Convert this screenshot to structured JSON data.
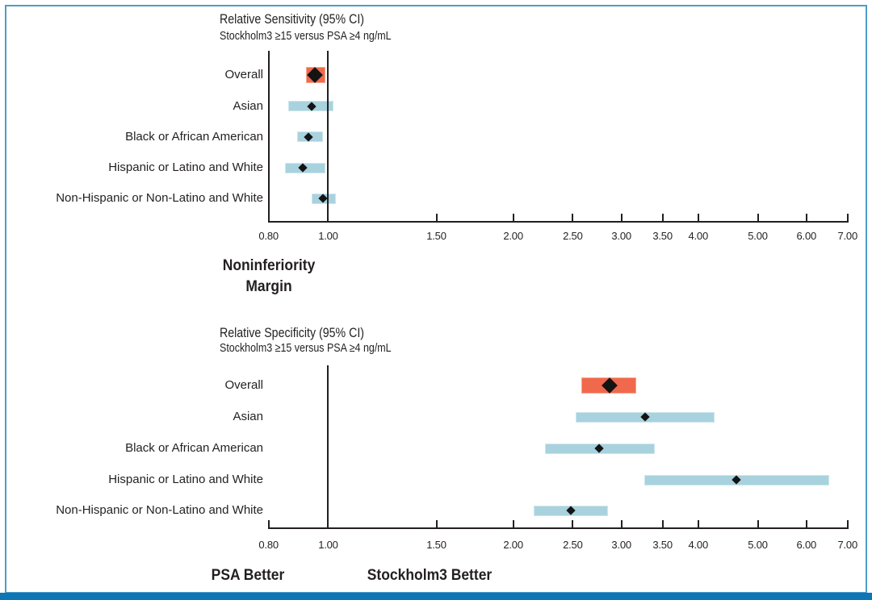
{
  "figure": {
    "background": "#FFFFFF",
    "border_color": "#4E9CC9",
    "bottom_rule_color": "#0E76B4",
    "text_color": "#231F20"
  },
  "colors": {
    "overall_box_fill": "#F0694C",
    "overall_box_rim": "#F7A58F",
    "subgroup_box_fill": "#A8D2DE",
    "subgroup_box_rim": "#CDE6EC",
    "diamond": "#141414",
    "axis_line": "#231F20",
    "reference_line": "#231F20"
  },
  "chart_data": [
    {
      "type": "forest",
      "panel": "relative-sensitivity",
      "title": "Relative Sensitivity (95% CI)",
      "subtitle": "Stockholm3 ≥15 versus PSA ≥4 ng/mL",
      "x_scale": "log",
      "xlim": [
        0.8,
        7.0
      ],
      "grid": false,
      "x_ticks": [
        0.8,
        1.0,
        1.5,
        2.0,
        2.5,
        3.0,
        3.5,
        4.0,
        5.0,
        6.0,
        7.0
      ],
      "x_tick_labels": [
        "0.80",
        "1.00",
        "1.50",
        "2.00",
        "2.50",
        "3.00",
        "3.50",
        "4.00",
        "5.00",
        "6.00",
        "7.00"
      ],
      "reference_lines": [
        0.8,
        1.0
      ],
      "annotation": {
        "anchor": 0.8,
        "lines": [
          "Noninferiority",
          "Margin"
        ]
      },
      "rows": [
        {
          "label": "Overall",
          "estimate": 0.95,
          "ci_lower": 0.92,
          "ci_upper": 0.99,
          "emphasis": true
        },
        {
          "label": "Asian",
          "estimate": 0.94,
          "ci_lower": 0.86,
          "ci_upper": 1.02,
          "emphasis": false
        },
        {
          "label": "Black or African American",
          "estimate": 0.93,
          "ci_lower": 0.89,
          "ci_upper": 0.98,
          "emphasis": false
        },
        {
          "label": "Hispanic or Latino and White",
          "estimate": 0.91,
          "ci_lower": 0.85,
          "ci_upper": 0.99,
          "emphasis": false
        },
        {
          "label": "Non-Hispanic or Non-Latino and White",
          "estimate": 0.98,
          "ci_lower": 0.94,
          "ci_upper": 1.03,
          "emphasis": false
        }
      ]
    },
    {
      "type": "forest",
      "panel": "relative-specificity",
      "title": "Relative Specificity (95% CI)",
      "subtitle": "Stockholm3 ≥15 versus PSA ≥4 ng/mL",
      "x_scale": "log",
      "xlim": [
        0.8,
        7.0
      ],
      "grid": false,
      "x_ticks": [
        0.8,
        1.0,
        1.5,
        2.0,
        2.5,
        3.0,
        3.5,
        4.0,
        5.0,
        6.0,
        7.0
      ],
      "x_tick_labels": [
        "0.80",
        "1.00",
        "1.50",
        "2.00",
        "2.50",
        "3.00",
        "3.50",
        "4.00",
        "5.00",
        "6.00",
        "7.00"
      ],
      "reference_lines": [
        1.0
      ],
      "direction_labels": [
        {
          "text": "PSA Better",
          "anchor": 0.74
        },
        {
          "text": "Stockholm3 Better",
          "anchor": 1.46
        }
      ],
      "rows": [
        {
          "label": "Overall",
          "estimate": 2.87,
          "ci_lower": 2.58,
          "ci_upper": 3.17,
          "emphasis": true
        },
        {
          "label": "Asian",
          "estimate": 3.28,
          "ci_lower": 2.53,
          "ci_upper": 4.25,
          "emphasis": false
        },
        {
          "label": "Black or African American",
          "estimate": 2.76,
          "ci_lower": 2.25,
          "ci_upper": 3.4,
          "emphasis": false
        },
        {
          "label": "Hispanic or Latino and White",
          "estimate": 4.62,
          "ci_lower": 3.27,
          "ci_upper": 6.53,
          "emphasis": false
        },
        {
          "label": "Non-Hispanic or Non-Latino and White",
          "estimate": 2.48,
          "ci_lower": 2.16,
          "ci_upper": 2.85,
          "emphasis": false
        }
      ]
    }
  ]
}
